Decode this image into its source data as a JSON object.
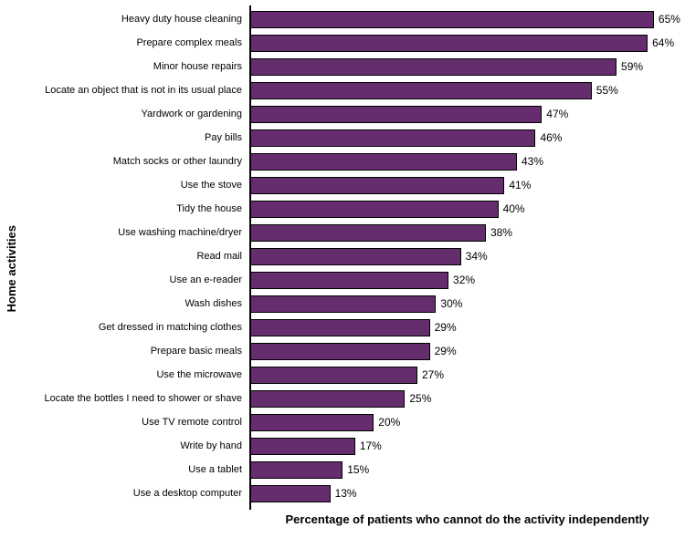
{
  "chart_data": {
    "type": "bar",
    "orientation": "horizontal",
    "title": "",
    "xlabel": "Percentage of patients who cannot do the activity independently",
    "ylabel": "Home activities",
    "categories": [
      "Heavy duty house cleaning",
      "Prepare complex meals",
      "Minor house repairs",
      "Locate an object that is not in its usual place",
      "Yardwork or gardening",
      "Pay bills",
      "Match socks or other laundry",
      "Use the stove",
      "Tidy the house",
      "Use washing machine/dryer",
      "Read mail",
      "Use an e-reader",
      "Wash dishes",
      "Get dressed in matching clothes",
      "Prepare basic meals",
      "Use the microwave",
      "Locate the bottles I need to shower or shave",
      "Use TV remote control",
      "Write by hand",
      "Use a tablet",
      "Use a desktop computer"
    ],
    "values": [
      65,
      64,
      59,
      55,
      47,
      46,
      43,
      41,
      40,
      38,
      34,
      32,
      30,
      29,
      29,
      27,
      25,
      20,
      17,
      15,
      13
    ],
    "value_suffix": "%",
    "xlim": [
      0,
      70
    ],
    "grid": false,
    "legend": false,
    "data_labels": true,
    "bar_color": "#662d6e",
    "bar_border_color": "#000000",
    "axis_color": "#000000"
  }
}
